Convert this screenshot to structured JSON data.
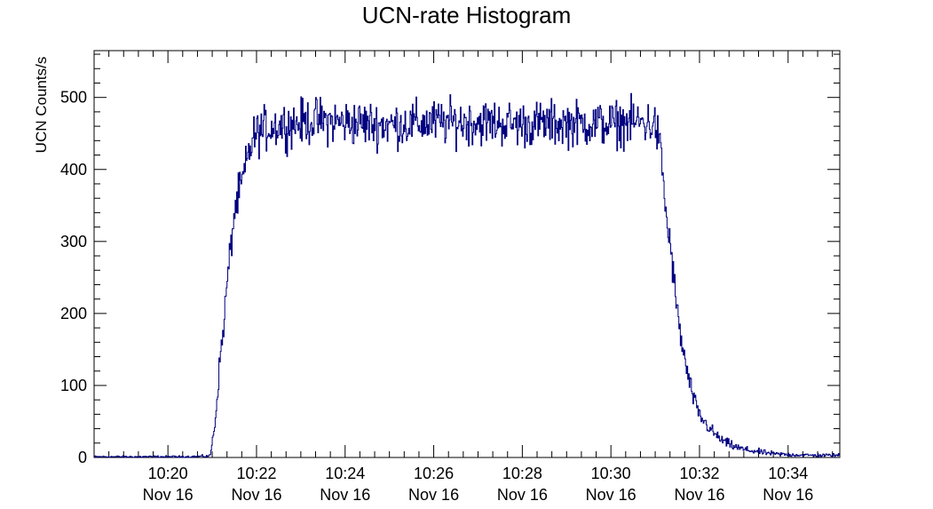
{
  "chart_data": {
    "type": "line",
    "title": "UCN-rate Histogram",
    "xlabel": "",
    "ylabel": "UCN Counts/s",
    "xlim": [
      "10:18:20",
      "10:35:10"
    ],
    "ylim": [
      0,
      565
    ],
    "x_ticks": [
      {
        "x": "10:20",
        "time_label": "10:20",
        "date_label": "Nov 16"
      },
      {
        "x": "10:22",
        "time_label": "10:22",
        "date_label": "Nov 16"
      },
      {
        "x": "10:24",
        "time_label": "10:24",
        "date_label": "Nov 16"
      },
      {
        "x": "10:26",
        "time_label": "10:26",
        "date_label": "Nov 16"
      },
      {
        "x": "10:28",
        "time_label": "10:28",
        "date_label": "Nov 16"
      },
      {
        "x": "10:30",
        "time_label": "10:30",
        "date_label": "Nov 16"
      },
      {
        "x": "10:32",
        "time_label": "10:32",
        "date_label": "Nov 16"
      },
      {
        "x": "10:34",
        "time_label": "10:34",
        "date_label": "Nov 16"
      }
    ],
    "y_ticks": [
      "0",
      "100",
      "200",
      "300",
      "400",
      "500"
    ],
    "grid": false,
    "line_color": "#000080",
    "series": [
      {
        "name": "",
        "points": [
          [
            "10:18:20",
            1
          ],
          [
            "10:19:00",
            1
          ],
          [
            "10:20:00",
            1
          ],
          [
            "10:20:30",
            1
          ],
          [
            "10:20:57",
            2
          ],
          [
            "10:21:00",
            20
          ],
          [
            "10:21:05",
            60
          ],
          [
            "10:21:10",
            130
          ],
          [
            "10:21:15",
            178
          ],
          [
            "10:21:20",
            240
          ],
          [
            "10:21:25",
            290
          ],
          [
            "10:21:30",
            340
          ],
          [
            "10:21:35",
            360
          ],
          [
            "10:21:40",
            380
          ],
          [
            "10:21:45",
            400
          ],
          [
            "10:21:50",
            425
          ],
          [
            "10:21:55",
            440
          ],
          [
            "10:22:00",
            450
          ],
          [
            "10:22:10",
            455
          ],
          [
            "10:22:20",
            460
          ],
          [
            "10:22:40",
            462
          ],
          [
            "10:23:00",
            465
          ],
          [
            "10:23:20",
            468
          ],
          [
            "10:24:00",
            465
          ],
          [
            "10:25:00",
            462
          ],
          [
            "10:26:00",
            465
          ],
          [
            "10:27:00",
            466
          ],
          [
            "10:28:00",
            463
          ],
          [
            "10:29:00",
            464
          ],
          [
            "10:30:00",
            463
          ],
          [
            "10:30:40",
            466
          ],
          [
            "10:31:00",
            462
          ],
          [
            "10:31:05",
            440
          ],
          [
            "10:31:10",
            400
          ],
          [
            "10:31:15",
            330
          ],
          [
            "10:31:20",
            300
          ],
          [
            "10:31:25",
            250
          ],
          [
            "10:31:30",
            200
          ],
          [
            "10:31:35",
            165
          ],
          [
            "10:31:40",
            135
          ],
          [
            "10:31:45",
            110
          ],
          [
            "10:31:50",
            90
          ],
          [
            "10:31:55",
            72
          ],
          [
            "10:32:00",
            58
          ],
          [
            "10:32:10",
            45
          ],
          [
            "10:32:20",
            33
          ],
          [
            "10:32:30",
            24
          ],
          [
            "10:32:45",
            16
          ],
          [
            "10:33:00",
            11
          ],
          [
            "10:33:20",
            8
          ],
          [
            "10:33:40",
            5
          ],
          [
            "10:34:00",
            4
          ],
          [
            "10:34:30",
            3
          ],
          [
            "10:35:10",
            3
          ]
        ]
      }
    ]
  }
}
